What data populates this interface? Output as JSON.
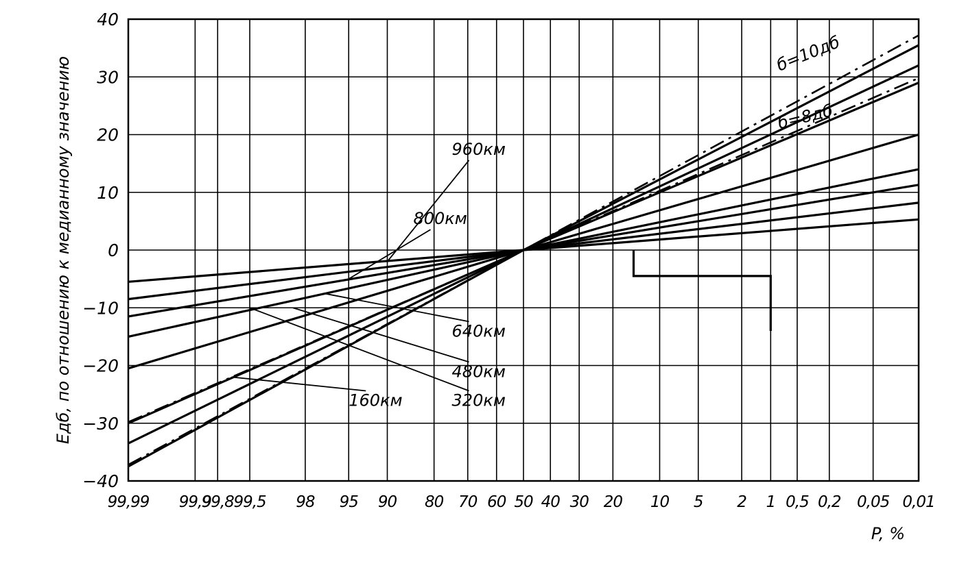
{
  "chart_data": {
    "type": "line",
    "title": "",
    "xlabel": "P, %",
    "ylabel": "Eдб, по отношению к медианному значению",
    "x_scale": "probability",
    "x_tick_values": [
      99.99,
      99.9,
      99.8,
      99.5,
      98,
      95,
      90,
      80,
      70,
      60,
      50,
      40,
      30,
      20,
      10,
      5,
      2,
      1,
      0.5,
      0.2,
      0.05,
      0.01
    ],
    "x_tick_labels": [
      "99,99",
      "99,9",
      "99,8",
      "99,5",
      "98",
      "95",
      "90",
      "80",
      "70",
      "60",
      "50",
      "40",
      "30",
      "20",
      "10",
      "5",
      "2",
      "1",
      "0,5",
      "0,2",
      "0,05",
      "0,01"
    ],
    "y_ticks": [
      40,
      30,
      20,
      10,
      0,
      -10,
      -20,
      -30,
      -40
    ],
    "ylim": [
      -40,
      40
    ],
    "xlim": [
      99.99,
      0.01
    ],
    "grid": true,
    "series": [
      {
        "name": "960км",
        "style": "solid",
        "points": [
          [
            99.99,
            -5.5
          ],
          [
            50,
            0
          ],
          [
            0.01,
            5.3
          ]
        ]
      },
      {
        "name": "800км",
        "style": "solid",
        "points": [
          [
            99.99,
            -8.5
          ],
          [
            50,
            0
          ],
          [
            0.01,
            8.2
          ]
        ]
      },
      {
        "name": "640км",
        "style": "solid",
        "points": [
          [
            99.99,
            -11.5
          ],
          [
            50,
            0
          ],
          [
            0.01,
            11.3
          ]
        ]
      },
      {
        "name": "480км",
        "style": "solid",
        "points": [
          [
            99.99,
            -15
          ],
          [
            50,
            0
          ],
          [
            0.01,
            14
          ]
        ]
      },
      {
        "name": "320км",
        "style": "solid",
        "points": [
          [
            99.99,
            -20.5
          ],
          [
            50,
            0
          ],
          [
            0.01,
            20
          ]
        ]
      },
      {
        "name": "160км",
        "style": "solid",
        "points": [
          [
            99.99,
            -30
          ],
          [
            50,
            0
          ],
          [
            0.01,
            29
          ]
        ]
      },
      {
        "name": "",
        "style": "solid",
        "points": [
          [
            99.99,
            -33.5
          ],
          [
            50,
            0
          ],
          [
            0.01,
            32
          ]
        ]
      },
      {
        "name": "",
        "style": "solid",
        "points": [
          [
            99.99,
            -37.5
          ],
          [
            50,
            0
          ],
          [
            0.01,
            35.5
          ]
        ]
      },
      {
        "name": "б=10дб",
        "style": "dashdot",
        "points": [
          [
            99.99,
            -37.2
          ],
          [
            50,
            0
          ],
          [
            0.01,
            37.2
          ]
        ]
      },
      {
        "name": "б=8дб",
        "style": "dashdot",
        "points": [
          [
            99.99,
            -29.8
          ],
          [
            50,
            0
          ],
          [
            0.01,
            29.8
          ]
        ]
      }
    ],
    "step_line": {
      "points": [
        [
          15,
          0
        ],
        [
          15,
          -4.5
        ],
        [
          1,
          -4.5
        ],
        [
          1,
          -14
        ]
      ]
    },
    "annotations": [
      {
        "text": "960км",
        "x": 75,
        "y": 16.5,
        "pointer_to": [
          90,
          -2
        ],
        "style": "leader"
      },
      {
        "text": "800км",
        "x": 85,
        "y": 4.5,
        "pointer_to": [
          95,
          -5
        ],
        "style": "leader"
      },
      {
        "text": "640км",
        "x": 75,
        "y": -15,
        "pointer_to": [
          97,
          -7.5
        ],
        "style": "leader"
      },
      {
        "text": "480км",
        "x": 75,
        "y": -22,
        "pointer_to": [
          98.5,
          -10
        ],
        "style": "leader"
      },
      {
        "text": "320км",
        "x": 75,
        "y": -27,
        "pointer_to": [
          99.5,
          -10
        ],
        "style": "leader"
      },
      {
        "text": "160км",
        "x": 95,
        "y": -27,
        "pointer_to": [
          99.7,
          -22
        ],
        "style": "leader"
      },
      {
        "text": "б=10дб",
        "x": 0.8,
        "y": 31,
        "rotate": -22
      },
      {
        "text": "б=8дб",
        "x": 0.8,
        "y": 21,
        "rotate": -14
      }
    ]
  }
}
